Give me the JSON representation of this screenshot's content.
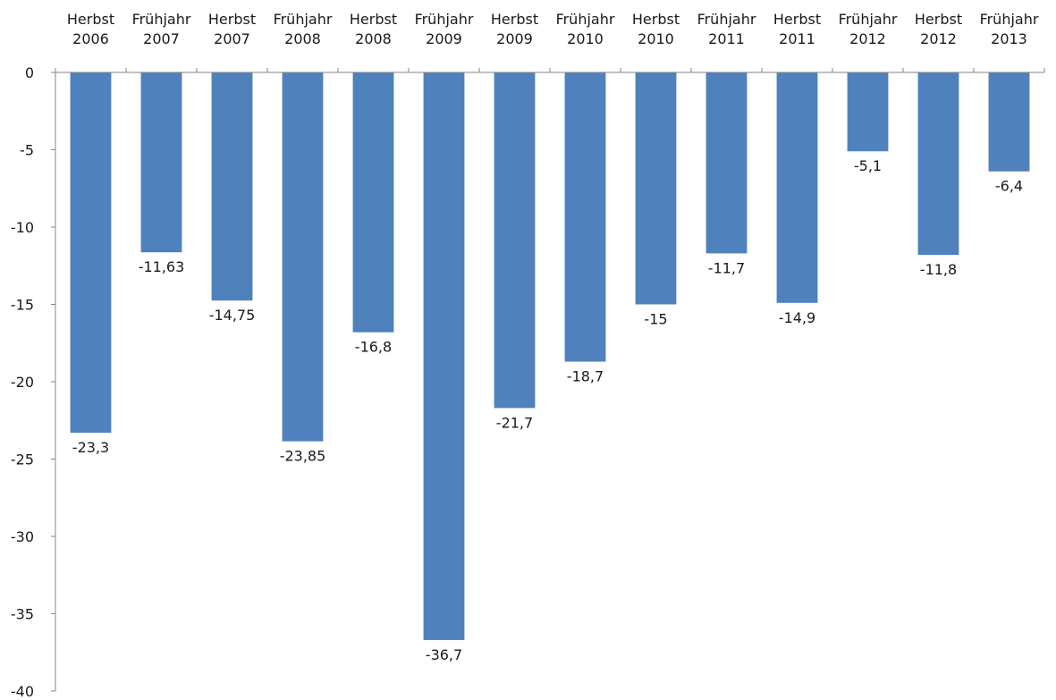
{
  "chart_data": {
    "type": "bar",
    "title": "",
    "xlabel": "",
    "ylabel": "",
    "categories": [
      [
        "Herbst",
        "2006"
      ],
      [
        "Frühjahr",
        "2007"
      ],
      [
        "Herbst",
        "2007"
      ],
      [
        "Frühjahr",
        "2008"
      ],
      [
        "Herbst",
        "2008"
      ],
      [
        "Frühjahr",
        "2009"
      ],
      [
        "Herbst",
        "2009"
      ],
      [
        "Frühjahr",
        "2010"
      ],
      [
        "Herbst",
        "2010"
      ],
      [
        "Frühjahr",
        "2011"
      ],
      [
        "Herbst",
        "2011"
      ],
      [
        "Frühjahr",
        "2012"
      ],
      [
        "Herbst",
        "2012"
      ],
      [
        "Frühjahr",
        "2013"
      ]
    ],
    "values": [
      -23.3,
      -11.63,
      -14.75,
      -23.85,
      -16.8,
      -36.7,
      -21.7,
      -18.7,
      -15,
      -11.7,
      -14.9,
      -5.1,
      -11.8,
      -6.4
    ],
    "data_labels": [
      "-23,3",
      "-11,63",
      "-14,75",
      "-23,85",
      "-16,8",
      "-36,7",
      "-21,7",
      "-18,7",
      "-15",
      "-11,7",
      "-14,9",
      "-5,1",
      "-11,8",
      "-6,4"
    ],
    "ylim": [
      -40,
      0
    ],
    "yticks": [
      0,
      -5,
      -10,
      -15,
      -20,
      -25,
      -30,
      -35,
      -40
    ],
    "ytick_labels": [
      "0",
      "-5",
      "-10",
      "-15",
      "-20",
      "-25",
      "-30",
      "-35",
      "-40"
    ],
    "x_axis_position": "top",
    "grid": false,
    "legend": "none",
    "bar_color": "#4f81bd",
    "axis_color": "#868686"
  }
}
